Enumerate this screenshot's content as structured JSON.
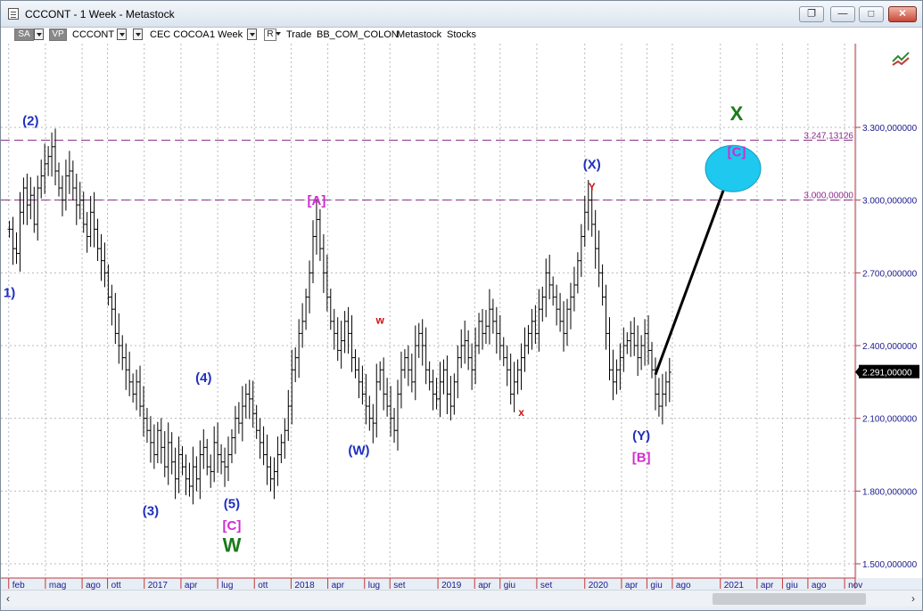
{
  "window": {
    "title": "CCCONT - 1 Week - Metastock",
    "controls": {
      "restore_label": "❐",
      "minimize_label": "—",
      "maximize_label": "□",
      "close_label": "✕"
    }
  },
  "toolbar": {
    "sa_label": "SA",
    "vp_label": "VP",
    "symbol": "CCCONT",
    "security_name": "CEC COCOA",
    "period": "1 Week",
    "r_label": "R",
    "trade_label": "Trade",
    "source": "BB_COM_COLON",
    "data_source": "Metastock",
    "type": "Stocks"
  },
  "chart_data": {
    "type": "ohlc",
    "y_axis": {
      "min": 1.4,
      "max": 3.7,
      "ticks": [
        "1.500,000000",
        "1.800,000000",
        "2.100,000000",
        "2.400,000000",
        "2.700,000000",
        "3.000,000000",
        "3.300,000000"
      ],
      "tick_values": [
        1.5,
        1.8,
        2.1,
        2.4,
        2.7,
        3.0,
        3.3
      ],
      "last_price_label": "2.291,00000",
      "last_price": 2.291
    },
    "x_axis": {
      "labels": [
        "feb",
        "mag",
        "ago",
        "ott",
        "2017",
        "apr",
        "lug",
        "ott",
        "2018",
        "apr",
        "lug",
        "set",
        "2019",
        "apr",
        "giu",
        "set",
        "2020",
        "apr",
        "giu",
        "ago",
        "2021",
        "apr",
        "giu",
        "ago",
        "nov"
      ],
      "label_weeks": [
        1,
        14,
        27,
        36,
        49,
        62,
        75,
        88,
        101,
        114,
        127,
        136,
        153,
        166,
        175,
        188,
        205,
        218,
        227,
        236,
        253,
        266,
        275,
        284,
        297
      ]
    },
    "series_weekly_close": [
      2.88,
      2.8,
      2.78,
      2.95,
      3.05,
      2.98,
      3.02,
      2.9,
      3.05,
      3.1,
      3.15,
      3.18,
      3.22,
      3.12,
      3.05,
      3.0,
      3.1,
      3.12,
      3.05,
      2.98,
      3.0,
      2.9,
      2.85,
      2.95,
      2.88,
      2.8,
      2.75,
      2.7,
      2.6,
      2.55,
      2.45,
      2.4,
      2.35,
      2.3,
      2.25,
      2.2,
      2.25,
      2.15,
      2.1,
      2.05,
      2.0,
      1.95,
      2.05,
      1.98,
      1.9,
      2.0,
      1.92,
      1.85,
      1.95,
      1.9,
      1.85,
      1.82,
      1.9,
      1.85,
      1.95,
      1.98,
      1.9,
      1.88,
      2.0,
      1.95,
      1.92,
      1.9,
      1.95,
      2.02,
      2.1,
      2.08,
      2.15,
      2.2,
      2.18,
      2.12,
      2.05,
      2.0,
      1.95,
      1.9,
      1.85,
      1.88,
      1.95,
      2.0,
      2.05,
      2.15,
      2.3,
      2.35,
      2.45,
      2.5,
      2.6,
      2.7,
      2.85,
      2.92,
      2.8,
      2.7,
      2.6,
      2.5,
      2.45,
      2.38,
      2.42,
      2.5,
      2.45,
      2.35,
      2.3,
      2.25,
      2.2,
      2.15,
      2.1,
      2.08,
      2.25,
      2.3,
      2.2,
      2.15,
      2.1,
      2.05,
      2.2,
      2.3,
      2.35,
      2.3,
      2.25,
      2.4,
      2.45,
      2.4,
      2.3,
      2.25,
      2.2,
      2.18,
      2.25,
      2.3,
      2.2,
      2.15,
      2.25,
      2.35,
      2.4,
      2.42,
      2.35,
      2.3,
      2.4,
      2.5,
      2.45,
      2.48,
      2.55,
      2.5,
      2.45,
      2.4,
      2.35,
      2.3,
      2.2,
      2.25,
      2.3,
      2.35,
      2.4,
      2.45,
      2.5,
      2.45,
      2.55,
      2.6,
      2.7,
      2.65,
      2.6,
      2.55,
      2.5,
      2.45,
      2.55,
      2.6,
      2.65,
      2.75,
      2.85,
      2.95,
      3.0,
      2.9,
      2.8,
      2.7,
      2.6,
      2.45,
      2.3,
      2.25,
      2.3,
      2.35,
      2.4,
      2.42,
      2.45,
      2.4,
      2.35,
      2.4,
      2.45,
      2.38,
      2.3,
      2.2,
      2.15,
      2.2,
      2.25,
      2.29
    ],
    "annotations": [
      {
        "text": "(2)",
        "color": "#1f2fbf",
        "week": 6,
        "price": 3.31
      },
      {
        "text": "1)",
        "color": "#1f2fbf",
        "week": 0,
        "price": 2.6
      },
      {
        "text": "(3)",
        "color": "#1f2fbf",
        "week": 40,
        "price": 1.7
      },
      {
        "text": "(4)",
        "color": "#1f2fbf",
        "week": 55,
        "price": 2.25
      },
      {
        "text": "(5)",
        "color": "#1f2fbf",
        "week": 63,
        "price": 1.73
      },
      {
        "text": "[C]",
        "color": "#d12ad1",
        "week": 63,
        "price": 1.64
      },
      {
        "text": "W",
        "color": "#1b7a1b",
        "week": 63,
        "price": 1.55
      },
      {
        "text": "[A]",
        "color": "#d12ad1",
        "week": 87,
        "price": 2.98
      },
      {
        "text": "w",
        "color": "#cc1111",
        "week": 105,
        "price": 2.49
      },
      {
        "text": "(W)",
        "color": "#1f2fbf",
        "week": 99,
        "price": 1.95
      },
      {
        "text": "x",
        "color": "#cc1111",
        "week": 145,
        "price": 2.11
      },
      {
        "text": "(X)",
        "color": "#1f2fbf",
        "week": 165,
        "price": 3.13
      },
      {
        "text": "Y",
        "color": "#cc1111",
        "week": 165,
        "price": 3.04
      },
      {
        "text": "(Y)",
        "color": "#1f2fbf",
        "week": 179,
        "price": 2.01
      },
      {
        "text": "[B]",
        "color": "#d12ad1",
        "week": 179,
        "price": 1.92
      },
      {
        "text": "X",
        "color": "#1b7a1b",
        "week": 206,
        "price": 3.33
      },
      {
        "text": "[C]",
        "color": "#d12ad1",
        "week": 206,
        "price": 3.18
      }
    ],
    "levels": [
      {
        "label": "3.247,13126",
        "value": 3.247
      },
      {
        "label": "3.000,00000",
        "value": 3.0
      }
    ],
    "projection": {
      "from_week": 183,
      "from_price": 2.28,
      "to_week": 203,
      "to_price": 3.07
    },
    "target_ellipse": {
      "week": 205,
      "price": 3.13
    }
  }
}
